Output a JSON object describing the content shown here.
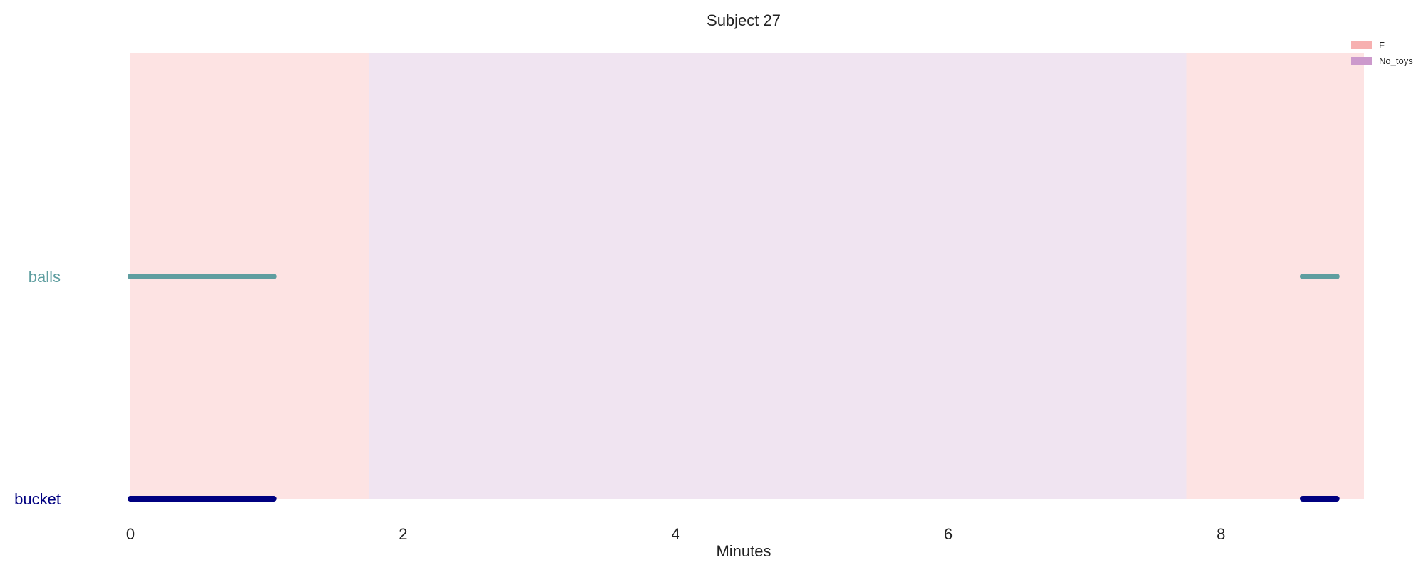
{
  "chart_data": {
    "type": "timeline",
    "title": "Subject 27",
    "xlabel": "Minutes",
    "ylabel": "",
    "xlim": [
      0,
      9.05
    ],
    "xticks": [
      0,
      2,
      4,
      6,
      8
    ],
    "grid": false,
    "legend_placement": "top-right",
    "legend": [
      {
        "label": "F",
        "color": "#f7b0b0"
      },
      {
        "label": "No_toys",
        "color": "#cc99cc"
      }
    ],
    "background_periods": [
      {
        "category": "F",
        "start": 0,
        "end": 1.75,
        "color": "#fde3e3"
      },
      {
        "category": "No_toys",
        "start": 1.75,
        "end": 7.75,
        "color": "#f0e4f1"
      },
      {
        "category": "F",
        "start": 7.75,
        "end": 9.05,
        "color": "#fde3e3"
      }
    ],
    "rows": [
      {
        "label": "balls",
        "color": "#5f9ea0",
        "segments": [
          [
            0,
            1.05
          ],
          [
            8.6,
            8.85
          ]
        ]
      },
      {
        "label": "bucket",
        "color": "#000080",
        "segments": [
          [
            0,
            1.05
          ],
          [
            8.6,
            8.85
          ]
        ]
      }
    ]
  }
}
